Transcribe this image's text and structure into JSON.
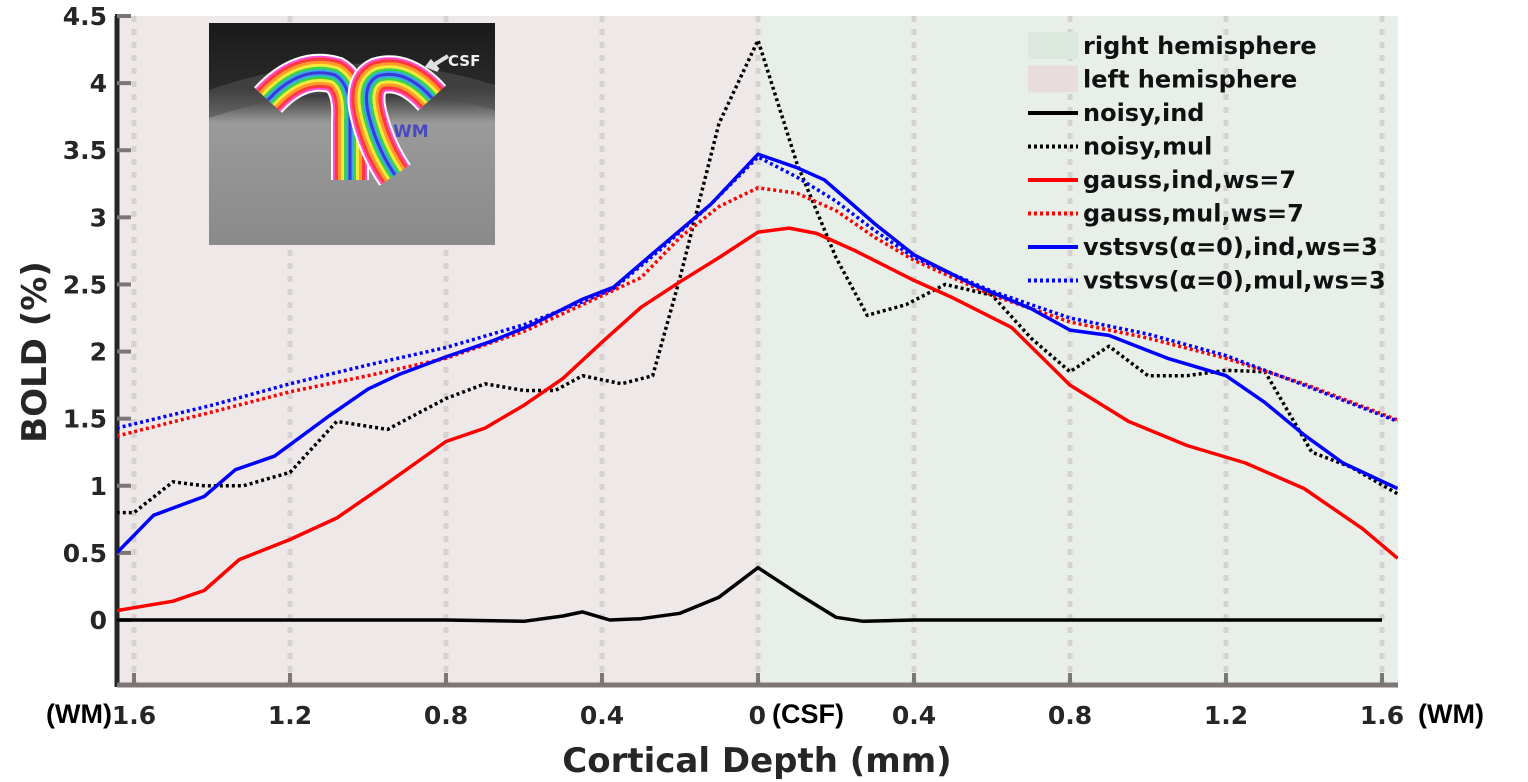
{
  "chart_data": {
    "type": "line",
    "title": "",
    "xlabel": "Cortical Depth (mm)",
    "ylabel": "BOLD (%)",
    "ylim": [
      -0.5,
      4.5
    ],
    "xlim": [
      -1.644,
      1.641
    ],
    "grid": "x-dotted",
    "x_tick_values": [
      -1.6,
      -1.2,
      -0.8,
      -0.4,
      0,
      0.4,
      0.8,
      1.2,
      1.6
    ],
    "x_tick_labels": [
      "1.6",
      "1.2",
      "0.8",
      "0.4",
      "0",
      "0.4",
      "0.8",
      "1.2",
      "1.6"
    ],
    "y_tick_values": [
      0,
      0.5,
      1,
      1.5,
      2,
      2.5,
      3,
      3.5,
      4,
      4.5
    ],
    "y_tick_labels": [
      "0",
      "0.5",
      "1",
      "1.5",
      "2",
      "2.5",
      "3",
      "3.5",
      "4",
      "4.5"
    ],
    "x_annotations": {
      "left": "(WM)",
      "center": "(CSF)",
      "right": "(WM)"
    },
    "regions": [
      {
        "name": "left hemisphere",
        "from": -1.644,
        "to": 0,
        "color": "#efe8e8"
      },
      {
        "name": "right hemisphere",
        "from": 0,
        "to": 1.641,
        "color": "#e8efe9"
      }
    ],
    "legend_position": "top-right",
    "legend": [
      {
        "label": "right hemisphere",
        "kind": "patch",
        "color": "#dce7dd"
      },
      {
        "label": "left hemisphere",
        "kind": "patch",
        "color": "#e8dcdd"
      },
      {
        "label": "noisy,ind",
        "kind": "line",
        "color": "#000000",
        "style": "solid"
      },
      {
        "label": "noisy,mul",
        "kind": "line",
        "color": "#000000",
        "style": "dotted"
      },
      {
        "label": "gauss,ind,ws=7",
        "kind": "line",
        "color": "#ff0000",
        "style": "solid"
      },
      {
        "label": "gauss,mul,ws=7",
        "kind": "line",
        "color": "#ff0000",
        "style": "dotted"
      },
      {
        "label": "vstsvs(α=0),ind,ws=3",
        "kind": "line",
        "color": "#0000ff",
        "style": "solid"
      },
      {
        "label": "vstsvs(α=0),mul,ws=3",
        "kind": "line",
        "color": "#0000ff",
        "style": "dotted"
      }
    ],
    "series": [
      {
        "name": "noisy,ind",
        "color": "#000000",
        "style": "solid",
        "x": [
          -1.644,
          -1.2,
          -0.8,
          -0.6,
          -0.5,
          -0.45,
          -0.38,
          -0.3,
          -0.2,
          -0.1,
          0,
          -0.0,
          0.1,
          0.2,
          0.27,
          0.4,
          0.8,
          1.2,
          1.6
        ],
        "y": [
          0,
          0,
          0,
          -0.01,
          0.03,
          0.06,
          0,
          0.01,
          0.05,
          0.17,
          0.39,
          0.39,
          0.2,
          0.02,
          -0.01,
          0,
          0,
          0,
          0
        ]
      },
      {
        "name": "noisy,mul",
        "color": "#000000",
        "style": "dotted",
        "x": [
          -1.644,
          -1.6,
          -1.5,
          -1.42,
          -1.32,
          -1.2,
          -1.08,
          -0.95,
          -0.8,
          -0.7,
          -0.6,
          -0.52,
          -0.45,
          -0.35,
          -0.27,
          -0.2,
          -0.1,
          0,
          0.1,
          0.2,
          0.28,
          0.38,
          0.48,
          0.6,
          0.7,
          0.8,
          0.9,
          1.0,
          1.1,
          1.2,
          1.3,
          1.42,
          1.52,
          1.64
        ],
        "y": [
          0.8,
          0.8,
          1.03,
          1.0,
          1.0,
          1.1,
          1.48,
          1.42,
          1.65,
          1.76,
          1.71,
          1.71,
          1.82,
          1.76,
          1.82,
          2.55,
          3.7,
          4.32,
          3.4,
          2.7,
          2.27,
          2.35,
          2.5,
          2.42,
          2.1,
          1.85,
          2.04,
          1.82,
          1.82,
          1.86,
          1.85,
          1.25,
          1.14,
          0.94
        ]
      },
      {
        "name": "gauss,ind,ws=7",
        "color": "#ff0000",
        "style": "solid",
        "x": [
          -1.644,
          -1.5,
          -1.42,
          -1.33,
          -1.2,
          -1.08,
          -0.95,
          -0.8,
          -0.7,
          -0.6,
          -0.5,
          -0.4,
          -0.3,
          -0.2,
          -0.1,
          0,
          0.08,
          0.15,
          0.25,
          0.4,
          0.5,
          0.65,
          0.8,
          0.95,
          1.1,
          1.25,
          1.4,
          1.55,
          1.64
        ],
        "y": [
          0.07,
          0.14,
          0.22,
          0.45,
          0.6,
          0.76,
          1.02,
          1.33,
          1.43,
          1.6,
          1.8,
          2.07,
          2.33,
          2.52,
          2.7,
          2.89,
          2.92,
          2.88,
          2.75,
          2.53,
          2.4,
          2.18,
          1.75,
          1.48,
          1.3,
          1.17,
          0.98,
          0.68,
          0.46
        ]
      },
      {
        "name": "gauss,mul,ws=7",
        "color": "#ff0000",
        "style": "dotted",
        "x": [
          -1.644,
          -1.4,
          -1.2,
          -1.0,
          -0.8,
          -0.6,
          -0.45,
          -0.3,
          -0.2,
          -0.1,
          0,
          0.1,
          0.2,
          0.3,
          0.4,
          0.6,
          0.8,
          1.0,
          1.2,
          1.4,
          1.64
        ],
        "y": [
          1.37,
          1.55,
          1.7,
          1.82,
          1.95,
          2.15,
          2.35,
          2.55,
          2.85,
          3.08,
          3.22,
          3.18,
          3.05,
          2.85,
          2.68,
          2.42,
          2.22,
          2.1,
          1.95,
          1.76,
          1.49
        ]
      },
      {
        "name": "vstsvs(α=0),ind,ws=3",
        "color": "#0000ff",
        "style": "solid",
        "x": [
          -1.644,
          -1.55,
          -1.42,
          -1.34,
          -1.24,
          -1.1,
          -1.0,
          -0.92,
          -0.8,
          -0.68,
          -0.58,
          -0.45,
          -0.37,
          -0.25,
          -0.12,
          0,
          0.1,
          0.17,
          0.3,
          0.4,
          0.55,
          0.7,
          0.8,
          0.9,
          1.05,
          1.2,
          1.3,
          1.4,
          1.5,
          1.64
        ],
        "y": [
          0.5,
          0.78,
          0.92,
          1.12,
          1.22,
          1.52,
          1.72,
          1.83,
          1.96,
          2.08,
          2.2,
          2.39,
          2.48,
          2.78,
          3.1,
          3.47,
          3.37,
          3.28,
          2.95,
          2.72,
          2.5,
          2.32,
          2.16,
          2.12,
          1.95,
          1.82,
          1.62,
          1.38,
          1.17,
          0.98
        ]
      },
      {
        "name": "vstsvs(α=0),mul,ws=3",
        "color": "#0000ff",
        "style": "dotted",
        "x": [
          -1.644,
          -1.4,
          -1.2,
          -1.0,
          -0.8,
          -0.6,
          -0.45,
          -0.37,
          -0.25,
          -0.12,
          0,
          0.1,
          0.2,
          0.3,
          0.4,
          0.6,
          0.8,
          1.0,
          1.2,
          1.4,
          1.64
        ],
        "y": [
          1.43,
          1.6,
          1.76,
          1.9,
          2.03,
          2.2,
          2.37,
          2.47,
          2.76,
          3.1,
          3.45,
          3.3,
          3.12,
          2.9,
          2.7,
          2.45,
          2.25,
          2.13,
          1.97,
          1.75,
          1.48
        ]
      }
    ]
  },
  "inset": {
    "csf_label": "CSF",
    "wm_label": "WM"
  }
}
